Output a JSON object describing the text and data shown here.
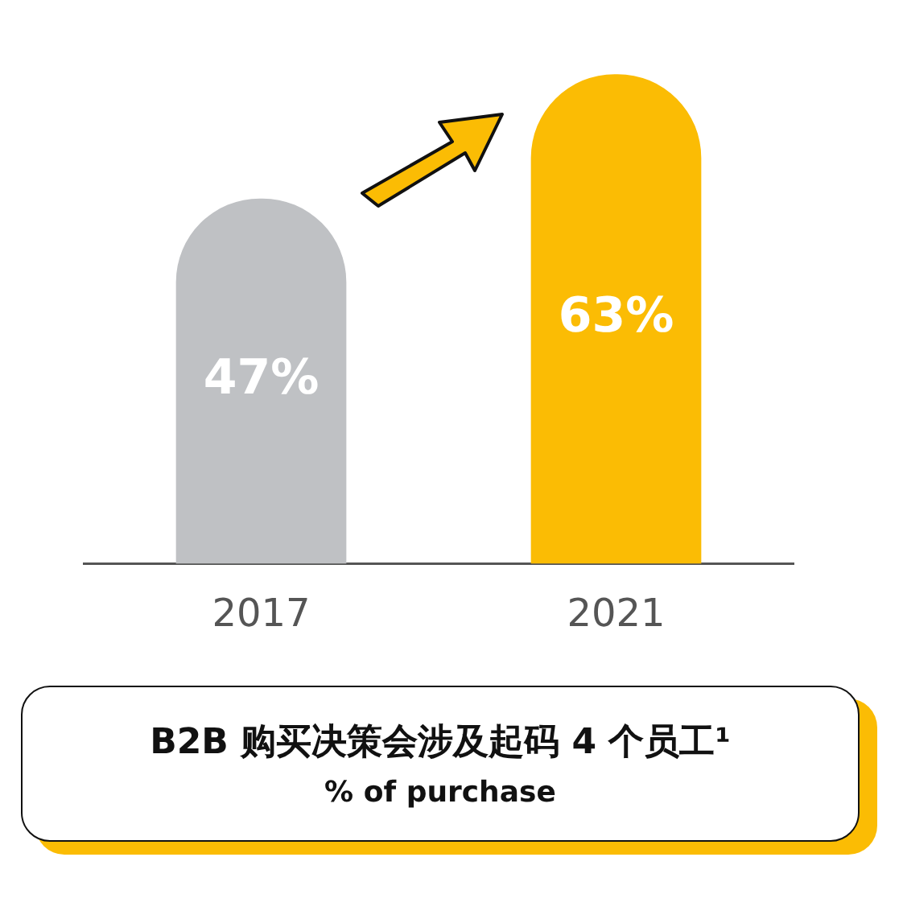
{
  "chart_data": {
    "type": "bar",
    "title": "B2B 购买决策会涉及起码 4 个员工¹",
    "subtitle": "% of purchase",
    "categories": [
      "2017",
      "2021"
    ],
    "values": [
      47,
      63
    ],
    "colors": [
      "#bfc1c4",
      "#fbbc04"
    ],
    "value_labels": [
      "47%",
      "63%"
    ],
    "grid": false,
    "legend": false
  }
}
